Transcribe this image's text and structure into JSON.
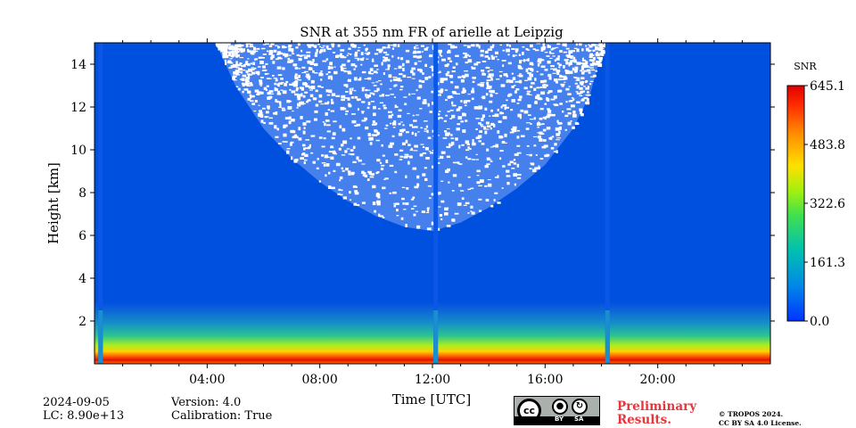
{
  "chart_data": {
    "type": "heatmap",
    "title": "SNR at 355 nm FR of arielle at Leipzig",
    "xlabel": "Time [UTC]",
    "ylabel": "Height [km]",
    "xlim_hours": [
      0,
      24
    ],
    "ylim_km": [
      0,
      15
    ],
    "x_ticks": [
      {
        "value": 4,
        "label": "04:00"
      },
      {
        "value": 8,
        "label": "08:00"
      },
      {
        "value": 12,
        "label": "12:00"
      },
      {
        "value": 16,
        "label": "16:00"
      },
      {
        "value": 20,
        "label": "20:00"
      }
    ],
    "y_ticks": [
      {
        "value": 2,
        "label": "2"
      },
      {
        "value": 4,
        "label": "4"
      },
      {
        "value": 6,
        "label": "6"
      },
      {
        "value": 8,
        "label": "8"
      },
      {
        "value": 10,
        "label": "10"
      },
      {
        "value": 12,
        "label": "12"
      },
      {
        "value": 14,
        "label": "14"
      }
    ],
    "colorbar": {
      "label": "SNR",
      "min": 0.0,
      "max": 645.1,
      "colormap": "jet",
      "ticks": [
        {
          "value": 0.0,
          "label": "0.0"
        },
        {
          "value": 161.3,
          "label": "161.3"
        },
        {
          "value": 322.6,
          "label": "322.6"
        },
        {
          "value": 483.8,
          "label": "483.8"
        },
        {
          "value": 645.1,
          "label": "645.1"
        }
      ]
    },
    "features": {
      "surface_layer_top_km": 1.0,
      "noise_cutoff_profile": [
        {
          "hour": 4.3,
          "height_km": 15.0
        },
        {
          "hour": 5.0,
          "height_km": 13.0
        },
        {
          "hour": 6.0,
          "height_km": 11.0
        },
        {
          "hour": 7.0,
          "height_km": 9.6
        },
        {
          "hour": 8.0,
          "height_km": 8.5
        },
        {
          "hour": 9.0,
          "height_km": 7.6
        },
        {
          "hour": 10.0,
          "height_km": 6.9
        },
        {
          "hour": 11.0,
          "height_km": 6.4
        },
        {
          "hour": 12.0,
          "height_km": 6.2
        },
        {
          "hour": 13.0,
          "height_km": 6.6
        },
        {
          "hour": 14.0,
          "height_km": 7.3
        },
        {
          "hour": 15.0,
          "height_km": 8.2
        },
        {
          "hour": 16.0,
          "height_km": 9.3
        },
        {
          "hour": 17.0,
          "height_km": 11.0
        },
        {
          "hour": 17.6,
          "height_km": 12.6
        },
        {
          "hour": 18.1,
          "height_km": 15.0
        }
      ],
      "gaps_hours": [
        0.2,
        12.1,
        18.2
      ]
    }
  },
  "footer": {
    "date": "2024-09-05",
    "lc": "LC: 8.90e+13",
    "version": "Version: 4.0",
    "calibration": "Calibration: True",
    "preliminary_line1": "Preliminary",
    "preliminary_line2": "Results.",
    "copyright_line1": "© TROPOS 2024.",
    "copyright_line2": "CC BY SA 4.0 License.",
    "license_badge": {
      "cc": "cc",
      "by": "BY",
      "sa": "SA"
    }
  }
}
